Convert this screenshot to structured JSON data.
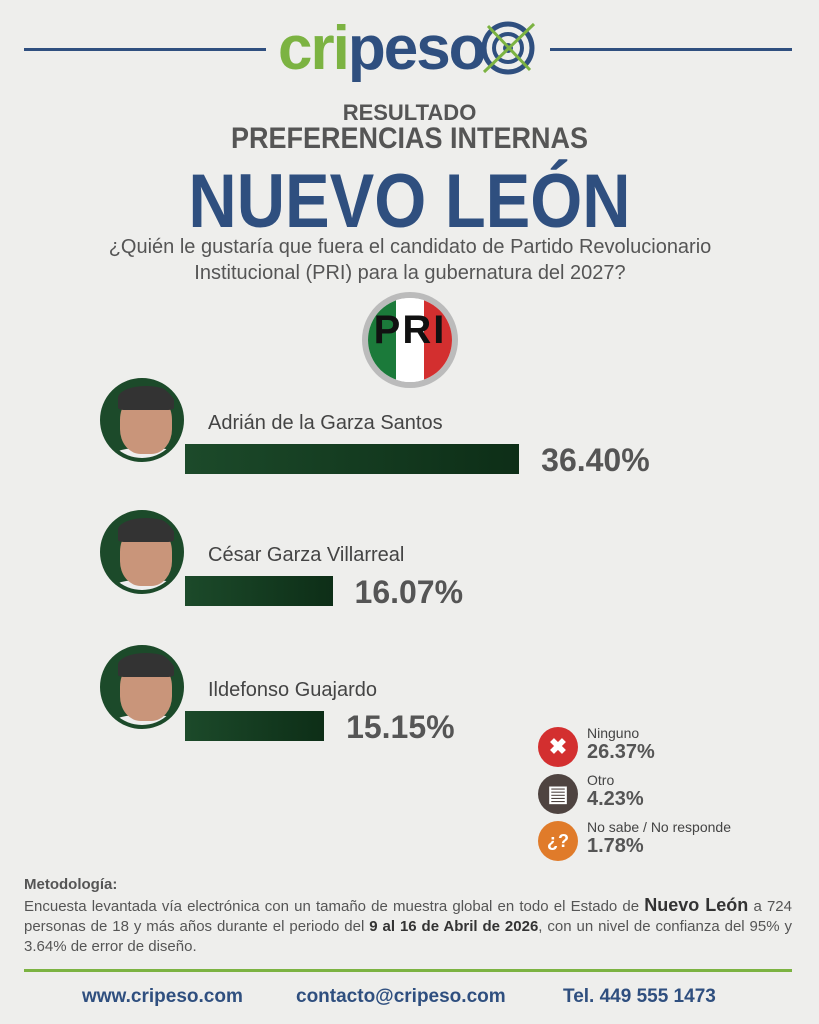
{
  "brand": {
    "logo_text_green": "cri",
    "logo_text_blue": "peso",
    "colors": {
      "green": "#7cb342",
      "blue": "#2f4f7f",
      "bar": "#1c4a2a"
    }
  },
  "header": {
    "result": "RESULTADO",
    "subtitle": "PREFERENCIAS INTERNAS",
    "state": "NUEVO LEÓN",
    "question": "¿Quién le gustaría que fuera el candidato de Partido Revolucionario Institucional (PRI) para la gubernatura del 2027?",
    "party_logo": "PRI"
  },
  "chart_data": {
    "type": "bar",
    "orientation": "horizontal",
    "categories": [
      "Adrián de la Garza Santos",
      "César Garza Villarreal",
      "Ildefonso Guajardo"
    ],
    "values": [
      36.4,
      16.07,
      15.15
    ],
    "value_labels": [
      "36.40%",
      "16.07%",
      "15.15%"
    ],
    "color": "#1c4a2a",
    "others": [
      {
        "label": "Ninguno",
        "value": 26.37,
        "value_label": "26.37%",
        "icon": "x-icon",
        "color": "#d32f2f"
      },
      {
        "label": "Otro",
        "value": 4.23,
        "value_label": "4.23%",
        "icon": "ballot-icon",
        "color": "#4e4340"
      },
      {
        "label": "No sabe / No responde",
        "value": 1.78,
        "value_label": "1.78%",
        "icon": "question-icon",
        "color": "#e07b2a"
      }
    ]
  },
  "methodology": {
    "title": "Metodología:",
    "text1": "Encuesta levantada vía electrónica con un tamaño de muestra global en todo el Estado de ",
    "bold1": "Nuevo León",
    "text2": " a 724 personas de 18 y más años durante el periodo del ",
    "bold2": "9 al 16 de Abril de 2026",
    "text3": ", con un nivel de confianza del 95% y 3.64% de error de diseño."
  },
  "footer": {
    "web": "www.cripeso.com",
    "email": "contacto@cripeso.com",
    "phone": "Tel. 449 555 1473"
  }
}
